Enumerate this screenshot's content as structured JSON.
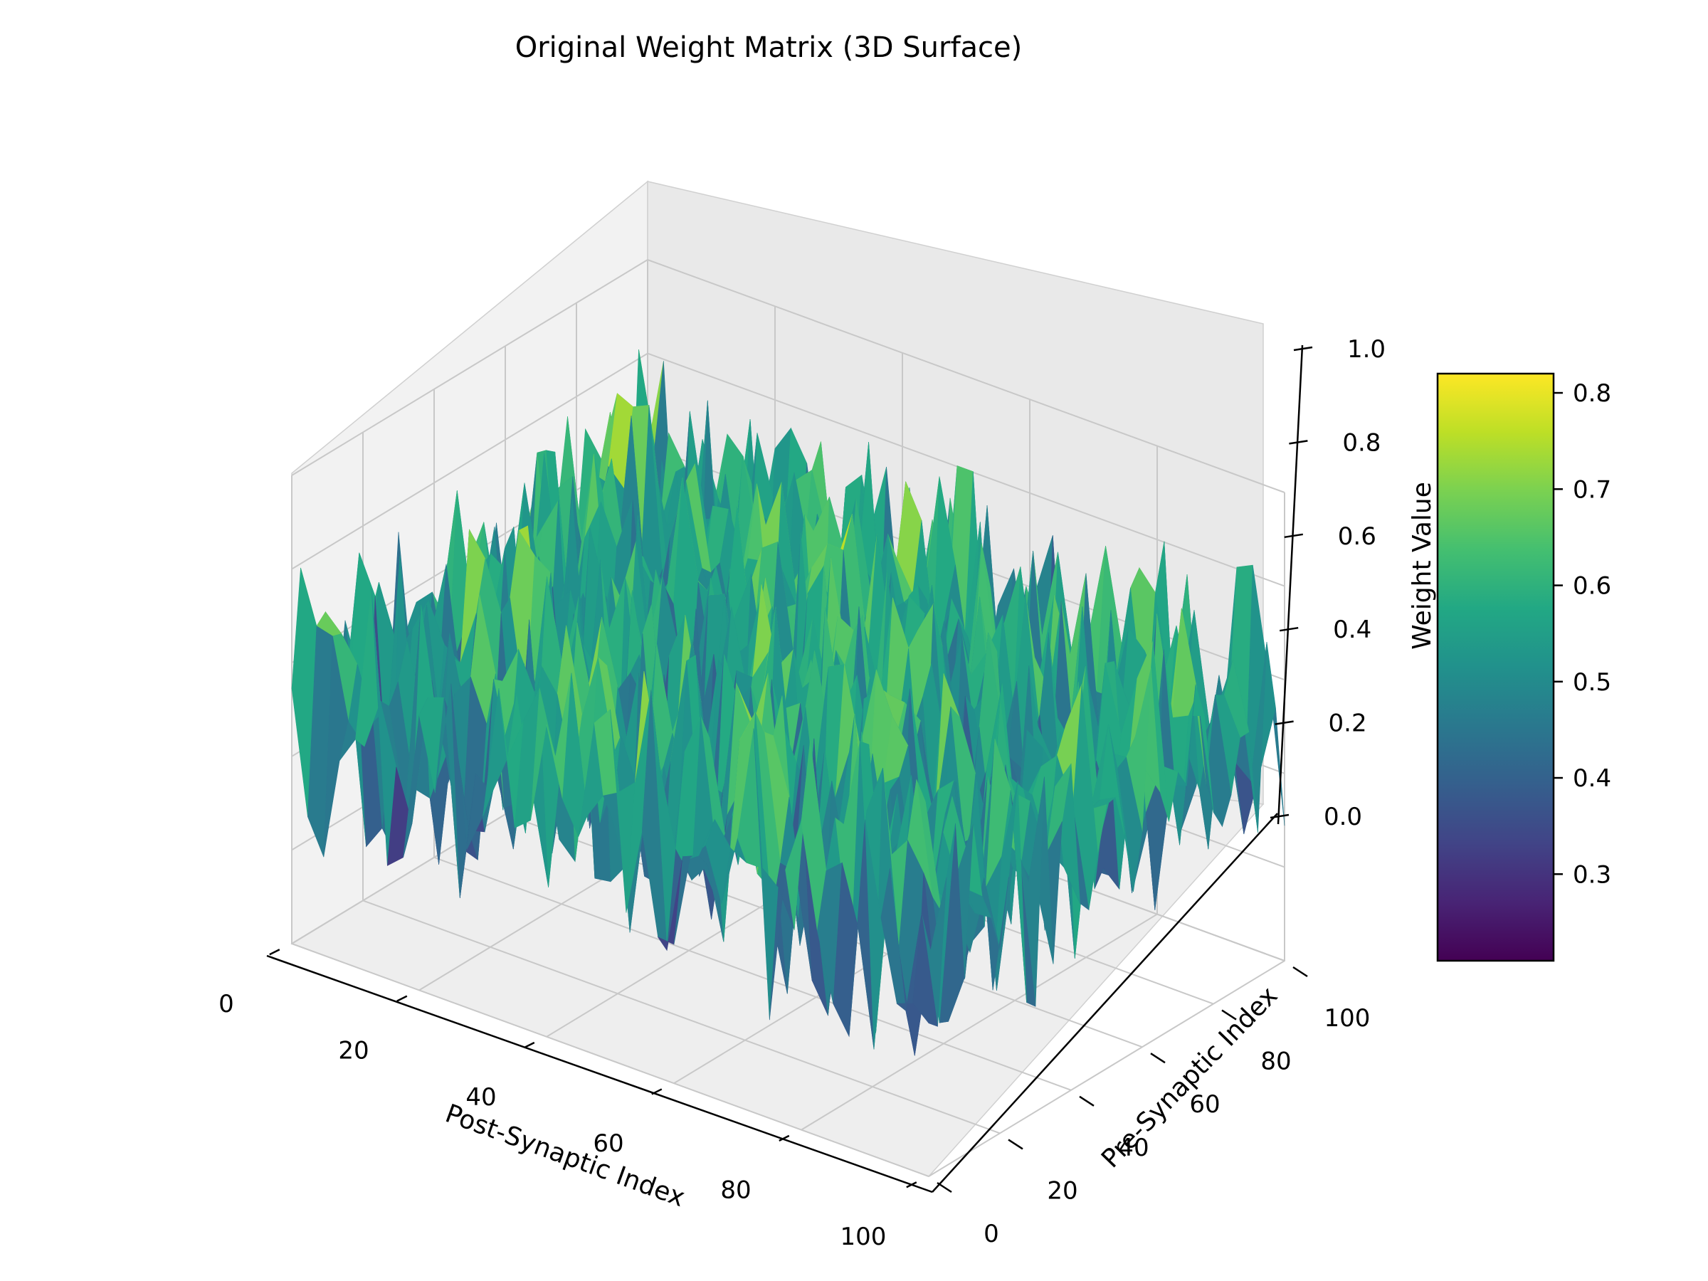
{
  "chart_data": {
    "type": "surface",
    "title": "Original Weight Matrix (3D Surface)",
    "xlabel": "Post-Synaptic Index",
    "ylabel": "Pre-Synaptic Index",
    "zlabel": "Weight Value",
    "x_ticks": [
      "0",
      "20",
      "40",
      "60",
      "80",
      "100"
    ],
    "y_ticks": [
      "0",
      "20",
      "40",
      "60",
      "80",
      "100"
    ],
    "z_ticks": [
      "0.0",
      "0.2",
      "0.4",
      "0.6",
      "0.8",
      "1.0"
    ],
    "xlim": [
      0,
      100
    ],
    "ylim": [
      0,
      100
    ],
    "zlim": [
      0,
      1.0
    ],
    "grid": true,
    "colormap": "viridis",
    "colorbar": {
      "label": "Weight Value",
      "range": [
        0.21,
        0.82
      ],
      "ticks": [
        "0.3",
        "0.4",
        "0.5",
        "0.6",
        "0.7",
        "0.8"
      ]
    },
    "surface": {
      "rows": 100,
      "cols": 100,
      "distribution": "random",
      "approx_mean": 0.52,
      "approx_min": 0.21,
      "approx_max": 0.82
    }
  }
}
